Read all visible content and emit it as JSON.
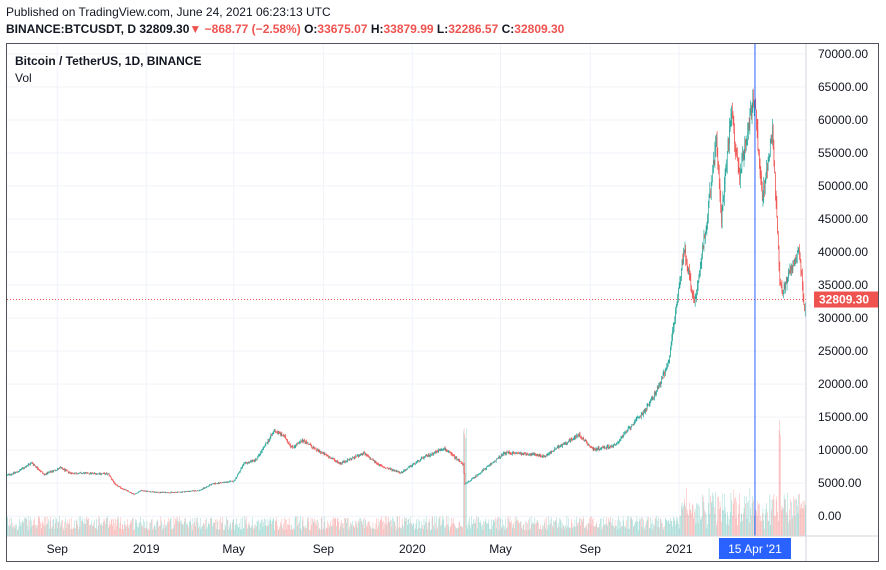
{
  "header": {
    "published": "Published on TradingView.com, June 24, 2021 06:23:13 UTC",
    "symbol": "BINANCE:BTCUSDT, D",
    "last": "32809.30",
    "change": "−868.77 (−2.58%)",
    "o_label": "O:",
    "open": "33675.07",
    "h_label": "H:",
    "high": "33879.99",
    "l_label": "L:",
    "low": "32286.57",
    "c_label": "C:",
    "close": "32809.30",
    "down_arrow": "▼"
  },
  "legend": {
    "title": "Bitcoin / TetherUS, 1D, BINANCE",
    "vol": "Vol"
  },
  "colors": {
    "up": "#26a69a",
    "down": "#ef5350",
    "crosshair": "#2962ff",
    "grid": "#f0f3fa"
  },
  "chart_data": {
    "type": "candlestick",
    "title": "Bitcoin / TetherUS, 1D, BINANCE",
    "y_ticks": [
      "70000.00",
      "65000.00",
      "60000.00",
      "55000.00",
      "50000.00",
      "45000.00",
      "40000.00",
      "35000.00",
      "30000.00",
      "25000.00",
      "20000.00",
      "15000.00",
      "10000.00",
      "5000.00",
      "0.00"
    ],
    "y_tick_values": [
      70000,
      65000,
      60000,
      55000,
      50000,
      45000,
      40000,
      35000,
      30000,
      25000,
      20000,
      15000,
      10000,
      5000,
      0
    ],
    "ylim": [
      -3000,
      71500
    ],
    "x_ticks": [
      "Sep",
      "2019",
      "May",
      "Sep",
      "2020",
      "May",
      "Sep",
      "2021"
    ],
    "x_tick_dates": [
      "2018-09-01",
      "2019-01-01",
      "2019-05-01",
      "2019-09-01",
      "2020-01-01",
      "2020-05-01",
      "2020-09-01",
      "2021-01-01"
    ],
    "x_range": [
      "2018-06-24",
      "2021-06-24"
    ],
    "crosshair_date": "2021-04-15",
    "crosshair_label": "15 Apr '21",
    "last_price": 32809.3,
    "last_price_label": "32809.30",
    "price_path": [
      [
        "2018-06-24",
        6200
      ],
      [
        "2018-07-08",
        6700
      ],
      [
        "2018-07-28",
        8100
      ],
      [
        "2018-08-14",
        6300
      ],
      [
        "2018-09-05",
        7300
      ],
      [
        "2018-09-20",
        6500
      ],
      [
        "2018-10-15",
        6500
      ],
      [
        "2018-11-10",
        6400
      ],
      [
        "2018-11-20",
        4700
      ],
      [
        "2018-12-15",
        3300
      ],
      [
        "2018-12-25",
        3900
      ],
      [
        "2019-01-15",
        3600
      ],
      [
        "2019-02-10",
        3600
      ],
      [
        "2019-03-15",
        3900
      ],
      [
        "2019-04-02",
        4900
      ],
      [
        "2019-05-01",
        5300
      ],
      [
        "2019-05-15",
        7900
      ],
      [
        "2019-06-01",
        8600
      ],
      [
        "2019-06-26",
        13000
      ],
      [
        "2019-07-10",
        12000
      ],
      [
        "2019-07-20",
        10400
      ],
      [
        "2019-08-05",
        11500
      ],
      [
        "2019-08-20",
        10200
      ],
      [
        "2019-09-24",
        8000
      ],
      [
        "2019-10-26",
        9500
      ],
      [
        "2019-11-20",
        7500
      ],
      [
        "2019-12-17",
        6600
      ],
      [
        "2020-01-15",
        8800
      ],
      [
        "2020-02-13",
        10300
      ],
      [
        "2020-03-11",
        7900
      ],
      [
        "2020-03-13",
        4800
      ],
      [
        "2020-04-01",
        6400
      ],
      [
        "2020-05-07",
        9600
      ],
      [
        "2020-06-01",
        9500
      ],
      [
        "2020-07-01",
        9100
      ],
      [
        "2020-07-27",
        11000
      ],
      [
        "2020-08-17",
        12300
      ],
      [
        "2020-09-05",
        10100
      ],
      [
        "2020-10-05",
        10700
      ],
      [
        "2020-10-21",
        12900
      ],
      [
        "2020-11-15",
        16000
      ],
      [
        "2020-12-01",
        19000
      ],
      [
        "2020-12-17",
        23000
      ],
      [
        "2021-01-08",
        40500
      ],
      [
        "2021-01-22",
        32000
      ],
      [
        "2021-02-08",
        45000
      ],
      [
        "2021-02-21",
        57000
      ],
      [
        "2021-02-28",
        45000
      ],
      [
        "2021-03-13",
        61000
      ],
      [
        "2021-03-25",
        52000
      ],
      [
        "2021-04-14",
        63500
      ],
      [
        "2021-04-25",
        48000
      ],
      [
        "2021-05-09",
        58000
      ],
      [
        "2021-05-19",
        36000
      ],
      [
        "2021-05-23",
        34000
      ],
      [
        "2021-06-01",
        37000
      ],
      [
        "2021-06-15",
        40000
      ],
      [
        "2021-06-22",
        31000
      ],
      [
        "2021-06-24",
        32809
      ]
    ]
  }
}
